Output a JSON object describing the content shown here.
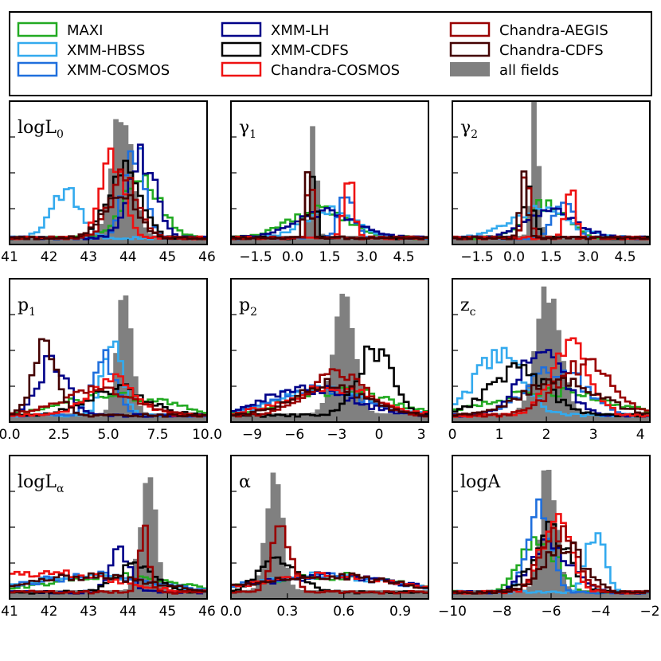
{
  "legend": {
    "items": [
      {
        "label": "MAXI",
        "color": "#22aa22",
        "type": "line"
      },
      {
        "label": "XMM-HBSS",
        "color": "#33aaee",
        "type": "line"
      },
      {
        "label": "XMM-COSMOS",
        "color": "#1f6fdd",
        "type": "line"
      },
      {
        "label": "XMM-LH",
        "color": "#000088",
        "type": "line"
      },
      {
        "label": "XMM-CDFS",
        "color": "#000000",
        "type": "line"
      },
      {
        "label": "Chandra-COSMOS",
        "color": "#ee1111",
        "type": "line"
      },
      {
        "label": "Chandra-AEGIS",
        "color": "#990000",
        "type": "line"
      },
      {
        "label": "Chandra-CDFS",
        "color": "#440000",
        "type": "line"
      },
      {
        "label": "all fields",
        "color": "#808080",
        "type": "fill"
      }
    ]
  },
  "chart_data": [
    {
      "type": "histogram",
      "param": "logL0",
      "label_main": "logL",
      "label_sub": "0",
      "xlim": [
        41,
        46
      ],
      "ticks": [
        41,
        42,
        43,
        44,
        45,
        46
      ],
      "tick_labels": [
        "41",
        "42",
        "43",
        "44",
        "45",
        "46"
      ],
      "all_fields_peak": 43.85,
      "all_fields_sd": 0.25,
      "all_fields_height": 0.95,
      "series": [
        {
          "name": "MAXI",
          "peak": 44.35,
          "sd": 0.45,
          "height": 0.45
        },
        {
          "name": "XMM-HBSS",
          "peak": 42.4,
          "sd": 0.35,
          "height": 0.35
        },
        {
          "name": "XMM-COSMOS",
          "peak": 44.15,
          "sd": 0.25,
          "height": 0.68
        },
        {
          "name": "XMM-LH",
          "peak": 44.35,
          "sd": 0.35,
          "height": 0.6
        },
        {
          "name": "XMM-CDFS",
          "peak": 43.9,
          "sd": 0.4,
          "height": 0.5
        },
        {
          "name": "Chandra-COSMOS",
          "peak": 43.6,
          "sd": 0.28,
          "height": 0.62
        },
        {
          "name": "Chandra-AEGIS",
          "peak": 43.9,
          "sd": 0.35,
          "height": 0.45
        },
        {
          "name": "Chandra-CDFS",
          "peak": 43.8,
          "sd": 0.4,
          "height": 0.35
        }
      ]
    },
    {
      "type": "histogram",
      "param": "gamma1",
      "label_main": "γ",
      "label_sub": "1",
      "xlim": [
        -2.5,
        5.5
      ],
      "ticks": [
        -1.5,
        0.0,
        1.5,
        3.0,
        4.5
      ],
      "tick_labels": [
        "−1.5",
        "0.0",
        "1.5",
        "3.0",
        "4.5"
      ],
      "all_fields_peak": 0.85,
      "all_fields_sd": 0.12,
      "all_fields_height": 0.92,
      "series": [
        {
          "name": "MAXI",
          "peak": 1.0,
          "sd": 1.2,
          "height": 0.2
        },
        {
          "name": "XMM-HBSS",
          "peak": 1.5,
          "sd": 1.0,
          "height": 0.2
        },
        {
          "name": "XMM-COSMOS",
          "peak": 2.2,
          "sd": 0.3,
          "height": 0.32
        },
        {
          "name": "XMM-LH",
          "peak": 1.3,
          "sd": 1.2,
          "height": 0.2
        },
        {
          "name": "XMM-CDFS",
          "peak": 0.8,
          "sd": 0.15,
          "height": 0.4
        },
        {
          "name": "Chandra-COSMOS",
          "peak": 2.3,
          "sd": 0.2,
          "height": 0.42
        },
        {
          "name": "Chandra-AEGIS",
          "peak": 0.7,
          "sd": 0.1,
          "height": 0.55
        },
        {
          "name": "Chandra-CDFS",
          "peak": 0.6,
          "sd": 0.12,
          "height": 0.5
        }
      ]
    },
    {
      "type": "histogram",
      "param": "gamma2",
      "label_main": "γ",
      "label_sub": "2",
      "xlim": [
        -2.5,
        5.5
      ],
      "ticks": [
        -1.5,
        0.0,
        1.5,
        3.0,
        4.5
      ],
      "tick_labels": [
        "−1.5",
        "0.0",
        "1.5",
        "3.0",
        "4.5"
      ],
      "all_fields_peak": 0.85,
      "all_fields_sd": 0.15,
      "all_fields_height": 0.92,
      "series": [
        {
          "name": "MAXI",
          "peak": 1.3,
          "sd": 0.8,
          "height": 0.25
        },
        {
          "name": "XMM-HBSS",
          "peak": 1.0,
          "sd": 1.2,
          "height": 0.2
        },
        {
          "name": "XMM-COSMOS",
          "peak": 2.0,
          "sd": 0.4,
          "height": 0.3
        },
        {
          "name": "XMM-LH",
          "peak": 1.5,
          "sd": 1.0,
          "height": 0.2
        },
        {
          "name": "XMM-CDFS",
          "peak": 0.6,
          "sd": 0.2,
          "height": 0.4
        },
        {
          "name": "Chandra-COSMOS",
          "peak": 2.3,
          "sd": 0.2,
          "height": 0.35
        },
        {
          "name": "Chandra-AEGIS",
          "peak": 0.5,
          "sd": 0.15,
          "height": 0.48
        },
        {
          "name": "Chandra-CDFS",
          "peak": 0.4,
          "sd": 0.15,
          "height": 0.45
        }
      ]
    },
    {
      "type": "histogram",
      "param": "p1",
      "label_main": "p",
      "label_sub": "1",
      "xlim": [
        0,
        10
      ],
      "ticks": [
        0.0,
        2.5,
        5.0,
        7.5,
        10.0
      ],
      "tick_labels": [
        "0.0",
        "2.5",
        "5.0",
        "7.5",
        "10.0"
      ],
      "all_fields_peak": 5.8,
      "all_fields_sd": 0.35,
      "all_fields_height": 0.92,
      "series": [
        {
          "name": "MAXI",
          "peak": 5.5,
          "sd": 2.5,
          "height": 0.15
        },
        {
          "name": "XMM-HBSS",
          "peak": 5.2,
          "sd": 0.5,
          "height": 0.48
        },
        {
          "name": "XMM-COSMOS",
          "peak": 4.8,
          "sd": 0.6,
          "height": 0.42
        },
        {
          "name": "XMM-LH",
          "peak": 2.2,
          "sd": 0.7,
          "height": 0.4
        },
        {
          "name": "XMM-CDFS",
          "peak": 5.5,
          "sd": 1.5,
          "height": 0.2
        },
        {
          "name": "Chandra-COSMOS",
          "peak": 5.2,
          "sd": 1.2,
          "height": 0.25
        },
        {
          "name": "Chandra-AEGIS",
          "peak": 4.5,
          "sd": 1.8,
          "height": 0.18
        },
        {
          "name": "Chandra-CDFS",
          "peak": 1.8,
          "sd": 0.6,
          "height": 0.55
        }
      ]
    },
    {
      "type": "histogram",
      "param": "p2",
      "label_main": "p",
      "label_sub": "2",
      "xlim": [
        -10.5,
        3.5
      ],
      "ticks": [
        -9,
        -6,
        -3,
        0,
        3
      ],
      "tick_labels": [
        "−9",
        "−6",
        "−3",
        "0",
        "3"
      ],
      "all_fields_peak": -2.5,
      "all_fields_sd": 0.7,
      "all_fields_height": 0.92,
      "series": [
        {
          "name": "MAXI",
          "peak": -3.0,
          "sd": 3.5,
          "height": 0.18
        },
        {
          "name": "XMM-HBSS",
          "peak": -4.0,
          "sd": 3.0,
          "height": 0.2
        },
        {
          "name": "XMM-COSMOS",
          "peak": -4.5,
          "sd": 3.0,
          "height": 0.2
        },
        {
          "name": "XMM-LH",
          "peak": -5.0,
          "sd": 3.0,
          "height": 0.2
        },
        {
          "name": "XMM-CDFS",
          "peak": -0.3,
          "sd": 1.2,
          "height": 0.48
        },
        {
          "name": "Chandra-COSMOS",
          "peak": -3.5,
          "sd": 3.0,
          "height": 0.2
        },
        {
          "name": "Chandra-AEGIS",
          "peak": -3.0,
          "sd": 2.0,
          "height": 0.3
        },
        {
          "name": "Chandra-CDFS",
          "peak": -3.5,
          "sd": 2.5,
          "height": 0.22
        }
      ]
    },
    {
      "type": "histogram",
      "param": "zc",
      "label_main": "z",
      "label_sub": "c",
      "xlim": [
        0,
        4.2
      ],
      "ticks": [
        0,
        1,
        2,
        3,
        4
      ],
      "tick_labels": [
        "0",
        "1",
        "2",
        "3",
        "4"
      ],
      "all_fields_peak": 2.05,
      "all_fields_sd": 0.25,
      "all_fields_height": 0.92,
      "series": [
        {
          "name": "MAXI",
          "peak": 2.0,
          "sd": 1.2,
          "height": 0.18
        },
        {
          "name": "XMM-HBSS",
          "peak": 1.0,
          "sd": 0.5,
          "height": 0.45
        },
        {
          "name": "XMM-COSMOS",
          "peak": 2.2,
          "sd": 0.6,
          "height": 0.35
        },
        {
          "name": "XMM-LH",
          "peak": 1.9,
          "sd": 0.45,
          "height": 0.5
        },
        {
          "name": "XMM-CDFS",
          "peak": 1.4,
          "sd": 0.6,
          "height": 0.35
        },
        {
          "name": "Chandra-COSMOS",
          "peak": 2.5,
          "sd": 0.4,
          "height": 0.52
        },
        {
          "name": "Chandra-AEGIS",
          "peak": 2.8,
          "sd": 0.6,
          "height": 0.38
        },
        {
          "name": "Chandra-CDFS",
          "peak": 2.3,
          "sd": 0.8,
          "height": 0.25
        }
      ]
    },
    {
      "type": "histogram",
      "param": "logLalpha",
      "label_main": "logL",
      "label_sub": "α",
      "xlim": [
        41,
        46
      ],
      "ticks": [
        41,
        42,
        43,
        44,
        45,
        46
      ],
      "tick_labels": [
        "41",
        "42",
        "43",
        "44",
        "45",
        "46"
      ],
      "all_fields_peak": 44.5,
      "all_fields_sd": 0.18,
      "all_fields_height": 0.92,
      "series": [
        {
          "name": "MAXI",
          "peak": 43.5,
          "sd": 1.5,
          "height": 0.12
        },
        {
          "name": "XMM-HBSS",
          "peak": 43.0,
          "sd": 1.5,
          "height": 0.12
        },
        {
          "name": "XMM-COSMOS",
          "peak": 43.0,
          "sd": 1.5,
          "height": 0.12
        },
        {
          "name": "XMM-LH",
          "peak": 43.8,
          "sd": 0.25,
          "height": 0.3
        },
        {
          "name": "XMM-CDFS",
          "peak": 44.2,
          "sd": 0.5,
          "height": 0.2
        },
        {
          "name": "Chandra-COSMOS",
          "peak": 42.0,
          "sd": 1.5,
          "height": 0.15
        },
        {
          "name": "Chandra-AEGIS",
          "peak": 44.4,
          "sd": 0.12,
          "height": 0.5
        },
        {
          "name": "Chandra-CDFS",
          "peak": 43.0,
          "sd": 1.5,
          "height": 0.12
        }
      ]
    },
    {
      "type": "histogram",
      "param": "alpha",
      "label_main": "α",
      "label_sub": "",
      "xlim": [
        0,
        1.05
      ],
      "ticks": [
        0.0,
        0.3,
        0.6,
        0.9
      ],
      "tick_labels": [
        "0.0",
        "0.3",
        "0.6",
        "0.9"
      ],
      "all_fields_peak": 0.23,
      "all_fields_sd": 0.04,
      "all_fields_height": 0.95,
      "series": [
        {
          "name": "MAXI",
          "peak": 0.5,
          "sd": 0.35,
          "height": 0.12
        },
        {
          "name": "XMM-HBSS",
          "peak": 0.5,
          "sd": 0.35,
          "height": 0.12
        },
        {
          "name": "XMM-COSMOS",
          "peak": 0.5,
          "sd": 0.35,
          "height": 0.12
        },
        {
          "name": "XMM-LH",
          "peak": 0.5,
          "sd": 0.35,
          "height": 0.12
        },
        {
          "name": "XMM-CDFS",
          "peak": 0.25,
          "sd": 0.1,
          "height": 0.25
        },
        {
          "name": "Chandra-COSMOS",
          "peak": 0.5,
          "sd": 0.35,
          "height": 0.12
        },
        {
          "name": "Chandra-AEGIS",
          "peak": 0.27,
          "sd": 0.05,
          "height": 0.48
        },
        {
          "name": "Chandra-CDFS",
          "peak": 0.5,
          "sd": 0.35,
          "height": 0.12
        }
      ]
    },
    {
      "type": "histogram",
      "param": "logA",
      "label_main": "logA",
      "label_sub": "",
      "xlim": [
        -10,
        -2
      ],
      "ticks": [
        -10,
        -8,
        -6,
        -4,
        -2
      ],
      "tick_labels": [
        "−10",
        "−8",
        "−6",
        "−4",
        "−2"
      ],
      "all_fields_peak": -6.1,
      "all_fields_sd": 0.3,
      "all_fields_height": 0.95,
      "series": [
        {
          "name": "MAXI",
          "peak": -6.5,
          "sd": 0.7,
          "height": 0.4
        },
        {
          "name": "XMM-HBSS",
          "peak": -4.2,
          "sd": 0.35,
          "height": 0.45
        },
        {
          "name": "XMM-COSMOS",
          "peak": -6.5,
          "sd": 0.45,
          "height": 0.62
        },
        {
          "name": "XMM-LH",
          "peak": -6.0,
          "sd": 0.8,
          "height": 0.35
        },
        {
          "name": "XMM-CDFS",
          "peak": -6.0,
          "sd": 0.7,
          "height": 0.45
        },
        {
          "name": "Chandra-COSMOS",
          "peak": -5.8,
          "sd": 0.55,
          "height": 0.58
        },
        {
          "name": "Chandra-AEGIS",
          "peak": -5.7,
          "sd": 0.7,
          "height": 0.45
        },
        {
          "name": "Chandra-CDFS",
          "peak": -5.5,
          "sd": 0.8,
          "height": 0.35
        }
      ]
    }
  ]
}
